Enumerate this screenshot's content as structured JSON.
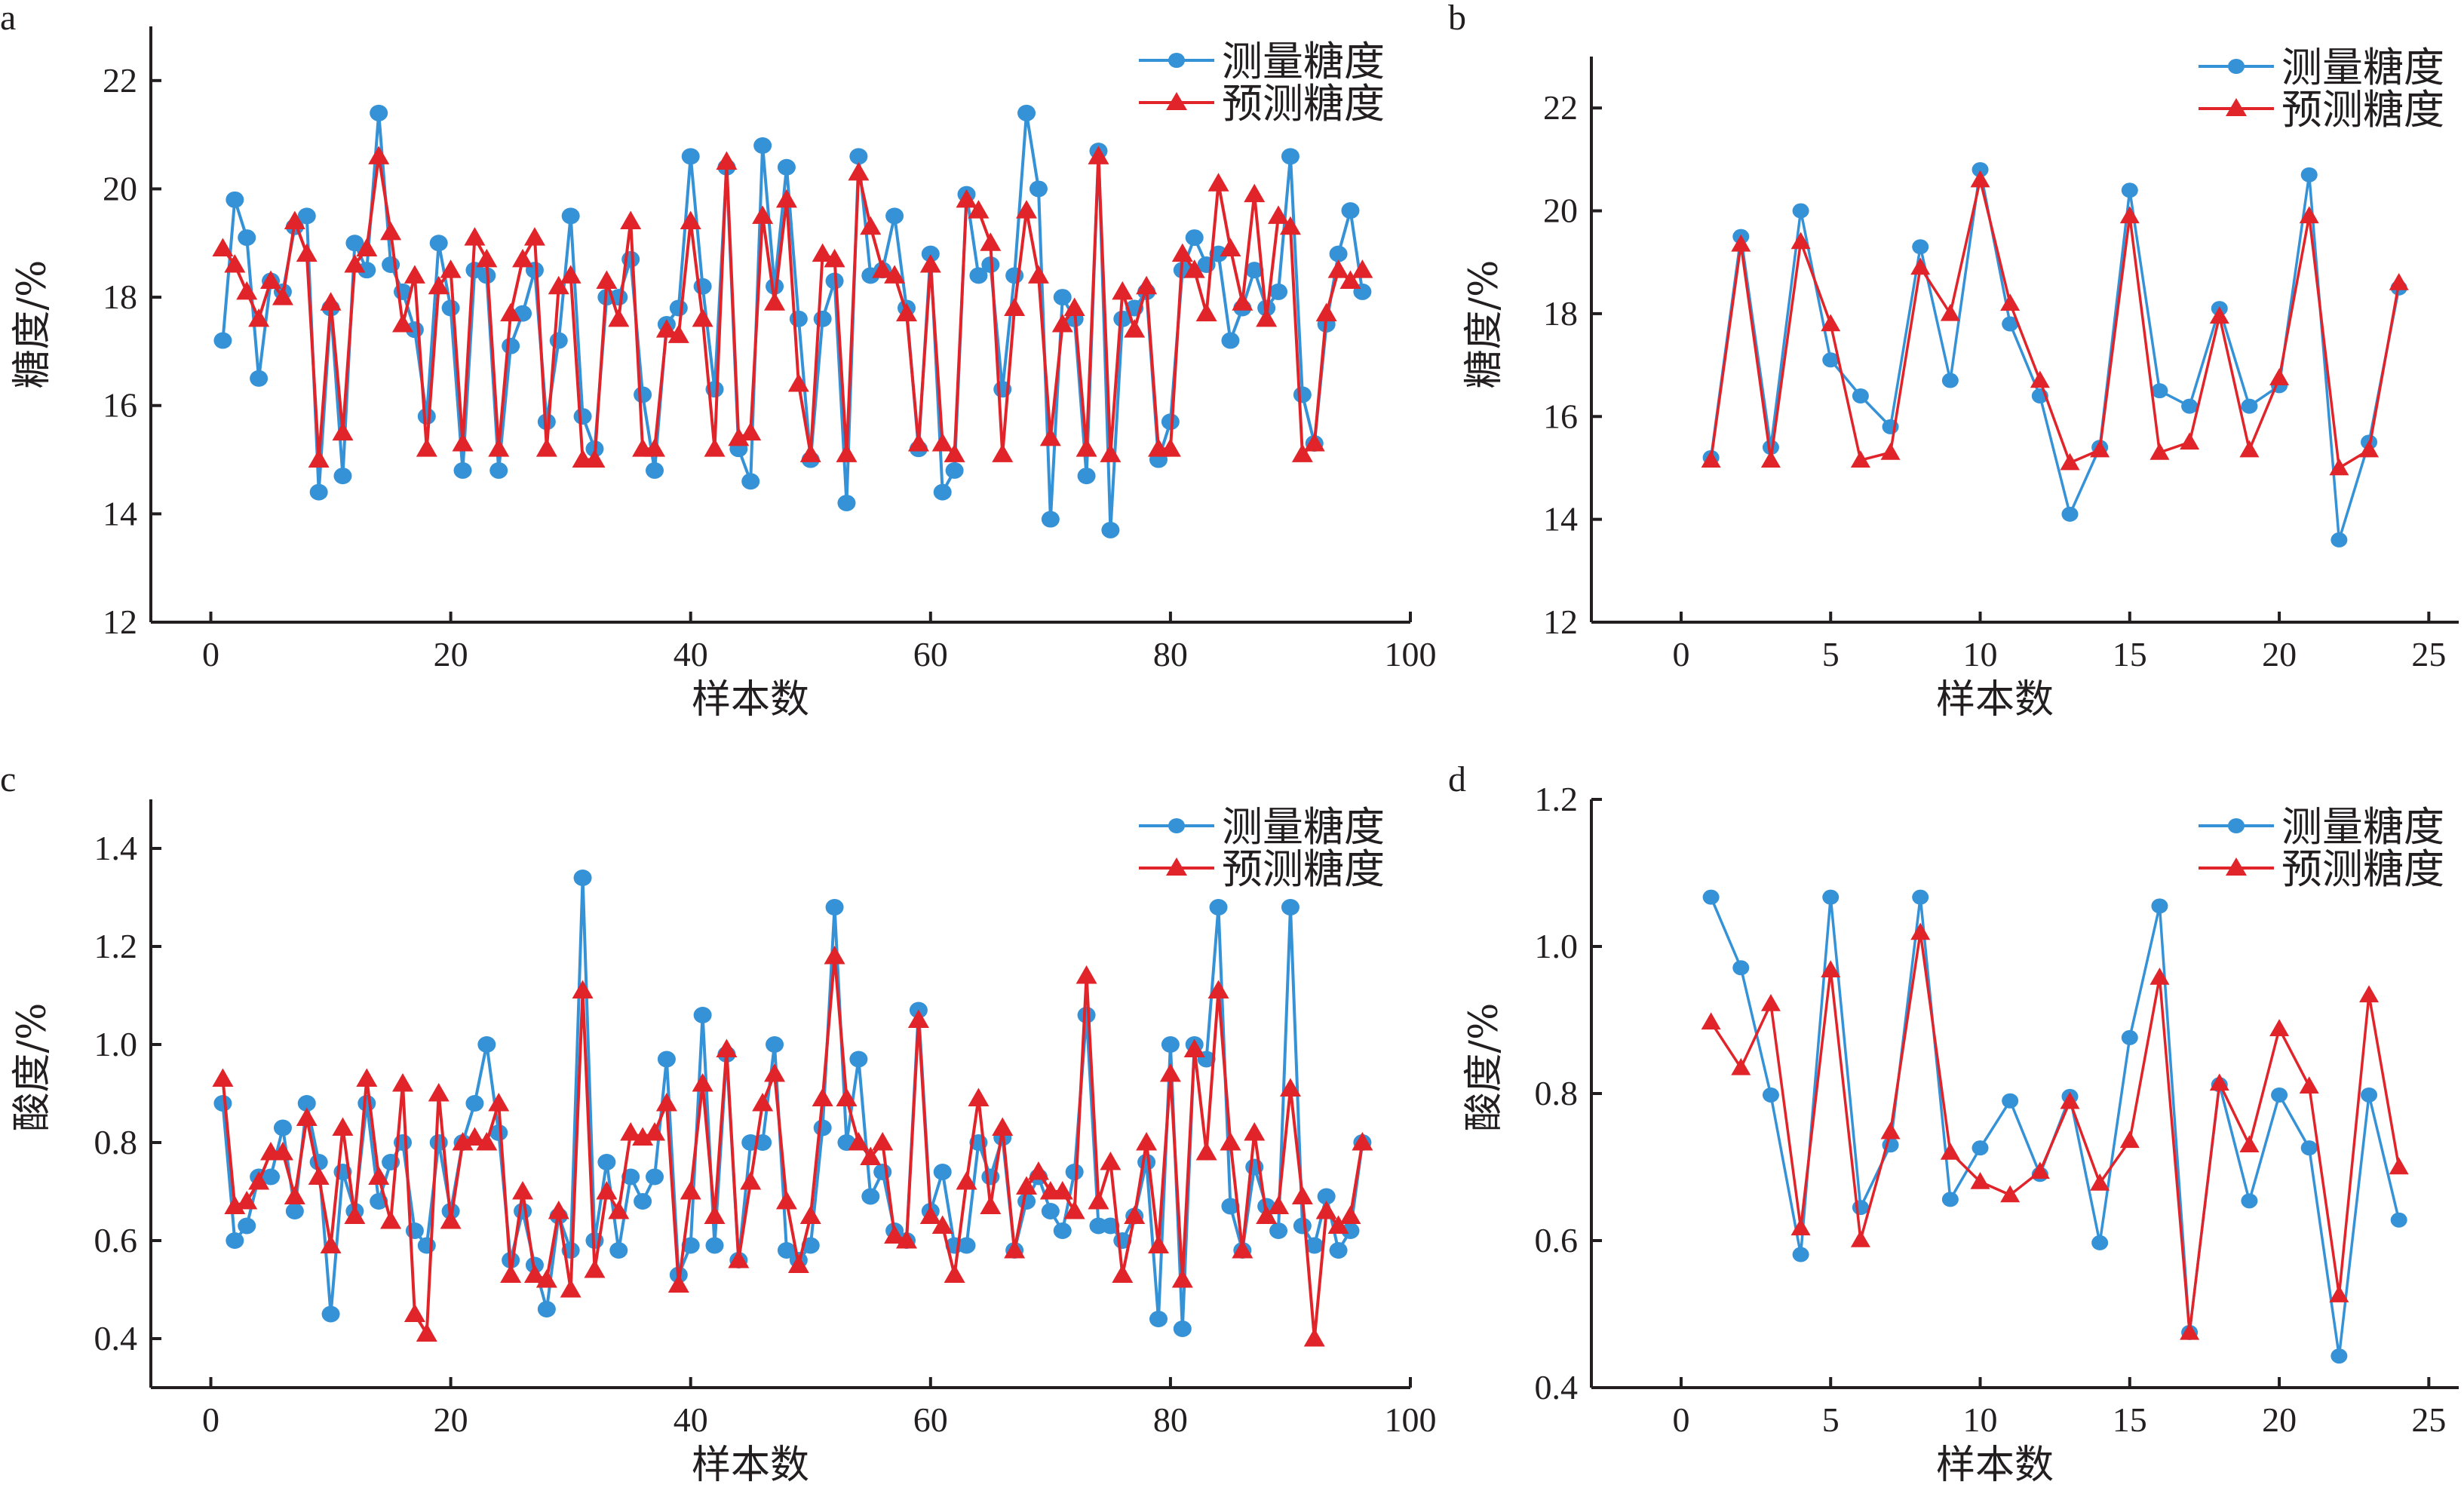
{
  "colors": {
    "measured": "#3592d6",
    "predicted": "#e0242a",
    "axis": "#231f20"
  },
  "chart_data": [
    {
      "id": "a",
      "panel_label": "a",
      "type": "line",
      "title": "",
      "xlabel": "样本数",
      "ylabel": "糖度/%",
      "xlim": [
        -5,
        100
      ],
      "ylim": [
        12,
        23
      ],
      "xticks": [
        0,
        20,
        40,
        60,
        80,
        100
      ],
      "yticks": [
        12,
        14,
        16,
        18,
        20,
        22
      ],
      "ytick_labels": [
        "12",
        "14",
        "16",
        "18",
        "20",
        "22"
      ],
      "legend": {
        "position": "top-right",
        "entries": [
          "测量糖度",
          "预测糖度"
        ]
      },
      "grid": false,
      "x": [
        1,
        2,
        3,
        4,
        5,
        6,
        7,
        8,
        9,
        10,
        11,
        12,
        13,
        14,
        15,
        16,
        17,
        18,
        19,
        20,
        21,
        22,
        23,
        24,
        25,
        26,
        27,
        28,
        29,
        30,
        31,
        32,
        33,
        34,
        35,
        36,
        37,
        38,
        39,
        40,
        41,
        42,
        43,
        44,
        45,
        46,
        47,
        48,
        49,
        50,
        51,
        52,
        53,
        54,
        55,
        56,
        57,
        58,
        59,
        60,
        61,
        62,
        63,
        64,
        65,
        66,
        67,
        68,
        69,
        70,
        71,
        72,
        73,
        74,
        75,
        76,
        77,
        78,
        79,
        80,
        81,
        82,
        83,
        84,
        85,
        86,
        87,
        88,
        89,
        90,
        91,
        92,
        93,
        94,
        95,
        96
      ],
      "series": [
        {
          "name": "测量糖度",
          "marker": "circle",
          "values": [
            17.2,
            19.8,
            19.1,
            16.5,
            18.3,
            18.1,
            19.3,
            19.5,
            14.4,
            17.8,
            14.7,
            19.0,
            18.5,
            21.4,
            18.6,
            18.1,
            17.4,
            15.8,
            19.0,
            17.8,
            14.8,
            18.5,
            18.4,
            14.8,
            17.1,
            17.7,
            18.5,
            15.7,
            17.2,
            19.5,
            15.8,
            15.2,
            18.0,
            18.0,
            18.7,
            16.2,
            14.8,
            17.5,
            17.8,
            20.6,
            18.2,
            16.3,
            20.4,
            15.2,
            14.6,
            20.8,
            18.2,
            20.4,
            17.6,
            15.0,
            17.6,
            18.3,
            14.2,
            20.6,
            18.4,
            18.5,
            19.5,
            17.8,
            15.2,
            18.8,
            14.4,
            14.8,
            19.9,
            18.4,
            18.6,
            16.3,
            18.4,
            21.4,
            20.0,
            13.9,
            18.0,
            17.6,
            14.7,
            20.7,
            13.7,
            17.6,
            17.8,
            18.1,
            15.0,
            15.7,
            18.5,
            19.1,
            18.6,
            18.8,
            17.2,
            17.8,
            18.5,
            17.8,
            18.1,
            20.6,
            16.2,
            15.3,
            17.5,
            18.8,
            19.6,
            18.1
          ]
        },
        {
          "name": "预测糖度",
          "marker": "triangle",
          "values": [
            18.9,
            18.6,
            18.1,
            17.6,
            18.3,
            18.0,
            19.4,
            18.8,
            15.0,
            17.9,
            15.5,
            18.6,
            18.9,
            20.6,
            19.2,
            17.5,
            18.4,
            15.2,
            18.2,
            18.5,
            15.3,
            19.1,
            18.7,
            15.2,
            17.7,
            18.7,
            19.1,
            15.2,
            18.2,
            18.4,
            15.0,
            15.0,
            18.3,
            17.6,
            19.4,
            15.2,
            15.2,
            17.4,
            17.3,
            19.4,
            17.6,
            15.2,
            20.5,
            15.4,
            15.5,
            19.5,
            17.9,
            19.8,
            16.4,
            15.1,
            18.8,
            18.7,
            15.1,
            20.3,
            19.3,
            18.5,
            18.4,
            17.7,
            15.3,
            18.6,
            15.3,
            15.1,
            19.8,
            19.6,
            19.0,
            15.1,
            17.8,
            19.6,
            18.4,
            15.4,
            17.5,
            17.8,
            15.2,
            20.6,
            15.1,
            18.1,
            17.4,
            18.2,
            15.2,
            15.2,
            18.8,
            18.5,
            17.7,
            20.1,
            18.9,
            17.9,
            19.9,
            17.6,
            19.5,
            19.3,
            15.1,
            15.3,
            17.7,
            18.5,
            18.3,
            18.5
          ]
        }
      ]
    },
    {
      "id": "b",
      "panel_label": "b",
      "type": "line",
      "title": "",
      "xlabel": "样本数",
      "ylabel": "糖度/%",
      "xlim": [
        -3,
        26
      ],
      "ylim": [
        12,
        23
      ],
      "xticks": [
        0,
        5,
        10,
        15,
        20,
        25
      ],
      "yticks": [
        12,
        14,
        16,
        18,
        20,
        22
      ],
      "ytick_labels": [
        "12",
        "14",
        "16",
        "18",
        "20",
        "22"
      ],
      "legend": {
        "position": "top-right",
        "entries": [
          "测量糖度",
          "预测糖度"
        ]
      },
      "grid": false,
      "x": [
        1,
        2,
        3,
        4,
        5,
        6,
        7,
        8,
        9,
        10,
        11,
        12,
        13,
        14,
        15,
        16,
        17,
        18,
        19,
        20,
        21,
        22,
        23,
        24
      ],
      "series": [
        {
          "name": "测量糖度",
          "marker": "circle",
          "values": [
            15.2,
            19.5,
            15.4,
            20.0,
            17.1,
            16.4,
            15.8,
            19.3,
            16.7,
            20.8,
            17.8,
            16.4,
            14.1,
            15.4,
            20.4,
            16.5,
            16.2,
            18.1,
            16.2,
            16.6,
            20.7,
            13.6,
            15.5,
            18.5
          ]
        },
        {
          "name": "预测糖度",
          "marker": "triangle",
          "values": [
            15.15,
            19.35,
            15.15,
            19.4,
            17.8,
            15.15,
            15.3,
            18.9,
            18.0,
            20.6,
            18.2,
            16.7,
            15.1,
            15.35,
            19.9,
            15.3,
            15.5,
            17.95,
            15.35,
            16.75,
            19.9,
            15.0,
            15.35,
            18.6
          ]
        }
      ]
    },
    {
      "id": "c",
      "panel_label": "c",
      "type": "line",
      "title": "",
      "xlabel": "样本数",
      "ylabel": "酸度/%",
      "xlim": [
        -5,
        100
      ],
      "ylim": [
        0.3,
        1.5
      ],
      "xticks": [
        0,
        20,
        40,
        60,
        80,
        100
      ],
      "yticks": [
        0.4,
        0.6,
        0.8,
        1.0,
        1.2,
        1.4
      ],
      "ytick_labels": [
        "0.4",
        "0.6",
        "0.8",
        "1.0",
        "1.2",
        "1.4"
      ],
      "legend": {
        "position": "top-right",
        "entries": [
          "测量糖度",
          "预测糖度"
        ]
      },
      "grid": false,
      "x": [
        1,
        2,
        3,
        4,
        5,
        6,
        7,
        8,
        9,
        10,
        11,
        12,
        13,
        14,
        15,
        16,
        17,
        18,
        19,
        20,
        21,
        22,
        23,
        24,
        25,
        26,
        27,
        28,
        29,
        30,
        31,
        32,
        33,
        34,
        35,
        36,
        37,
        38,
        39,
        40,
        41,
        42,
        43,
        44,
        45,
        46,
        47,
        48,
        49,
        50,
        51,
        52,
        53,
        54,
        55,
        56,
        57,
        58,
        59,
        60,
        61,
        62,
        63,
        64,
        65,
        66,
        67,
        68,
        69,
        70,
        71,
        72,
        73,
        74,
        75,
        76,
        77,
        78,
        79,
        80,
        81,
        82,
        83,
        84,
        85,
        86,
        87,
        88,
        89,
        90,
        91,
        92,
        93,
        94,
        95,
        96
      ],
      "series": [
        {
          "name": "测量糖度",
          "marker": "circle",
          "values": [
            0.88,
            0.6,
            0.63,
            0.73,
            0.73,
            0.83,
            0.66,
            0.88,
            0.76,
            0.45,
            0.74,
            0.66,
            0.88,
            0.68,
            0.76,
            0.8,
            0.62,
            0.59,
            0.8,
            0.66,
            0.8,
            0.88,
            1.0,
            0.82,
            0.56,
            0.66,
            0.55,
            0.46,
            0.65,
            0.58,
            1.34,
            0.6,
            0.76,
            0.58,
            0.73,
            0.68,
            0.73,
            0.97,
            0.53,
            0.59,
            1.06,
            0.59,
            0.98,
            0.56,
            0.8,
            0.8,
            1.0,
            0.58,
            0.56,
            0.59,
            0.83,
            1.28,
            0.8,
            0.97,
            0.69,
            0.74,
            0.62,
            0.6,
            1.07,
            0.66,
            0.74,
            0.59,
            0.59,
            0.8,
            0.73,
            0.81,
            0.58,
            0.68,
            0.73,
            0.66,
            0.62,
            0.74,
            1.06,
            0.63,
            0.63,
            0.6,
            0.65,
            0.76,
            0.44,
            1.0,
            0.42,
            1.0,
            0.97,
            1.28,
            0.67,
            0.58,
            0.75,
            0.67,
            0.62,
            1.28,
            0.63,
            0.59,
            0.69,
            0.58,
            0.62,
            0.8
          ]
        },
        {
          "name": "预测糖度",
          "marker": "triangle",
          "values": [
            0.93,
            0.67,
            0.68,
            0.72,
            0.78,
            0.78,
            0.69,
            0.85,
            0.73,
            0.59,
            0.83,
            0.65,
            0.93,
            0.73,
            0.64,
            0.92,
            0.45,
            0.41,
            0.9,
            0.64,
            0.8,
            0.81,
            0.8,
            0.88,
            0.53,
            0.7,
            0.53,
            0.52,
            0.66,
            0.5,
            1.11,
            0.54,
            0.7,
            0.66,
            0.82,
            0.81,
            0.82,
            0.88,
            0.51,
            0.7,
            0.92,
            0.65,
            0.99,
            0.56,
            0.72,
            0.88,
            0.94,
            0.68,
            0.55,
            0.65,
            0.89,
            1.18,
            0.89,
            0.8,
            0.77,
            0.8,
            0.61,
            0.6,
            1.05,
            0.65,
            0.63,
            0.53,
            0.72,
            0.89,
            0.67,
            0.83,
            0.58,
            0.71,
            0.74,
            0.7,
            0.7,
            0.66,
            1.14,
            0.68,
            0.76,
            0.53,
            0.65,
            0.8,
            0.59,
            0.94,
            0.52,
            0.99,
            0.78,
            1.11,
            0.8,
            0.58,
            0.82,
            0.65,
            0.67,
            0.91,
            0.69,
            0.4,
            0.66,
            0.63,
            0.65,
            0.8
          ]
        }
      ]
    },
    {
      "id": "d",
      "panel_label": "d",
      "type": "line",
      "title": "",
      "xlabel": "样本数",
      "ylabel": "酸度/%",
      "xlim": [
        -3,
        26
      ],
      "ylim": [
        0.4,
        1.2
      ],
      "xticks": [
        0,
        5,
        10,
        15,
        20,
        25
      ],
      "yticks": [
        0.4,
        0.6,
        0.8,
        1.0,
        1.2
      ],
      "ytick_labels": [
        "0.4",
        "0.6",
        "0.8",
        "1.0",
        "1.2"
      ],
      "legend": {
        "position": "top-right",
        "entries": [
          "测量糖度",
          "预测糖度"
        ]
      },
      "grid": false,
      "x": [
        1,
        2,
        3,
        4,
        5,
        6,
        7,
        8,
        9,
        10,
        11,
        12,
        13,
        14,
        15,
        16,
        17,
        18,
        19,
        20,
        21,
        22,
        23,
        24
      ],
      "series": [
        {
          "name": "测量糖度",
          "marker": "circle",
          "values": [
            1.067,
            0.971,
            0.798,
            0.581,
            1.067,
            0.645,
            0.73,
            1.067,
            0.656,
            0.726,
            0.79,
            0.69,
            0.796,
            0.597,
            0.876,
            1.055,
            0.475,
            0.812,
            0.654,
            0.798,
            0.726,
            0.443,
            0.798,
            0.628
          ]
        },
        {
          "name": "预测糖度",
          "marker": "triangle",
          "values": [
            0.897,
            0.835,
            0.922,
            0.617,
            0.968,
            0.601,
            0.748,
            1.019,
            0.72,
            0.68,
            0.662,
            0.694,
            0.789,
            0.678,
            0.736,
            0.958,
            0.475,
            0.814,
            0.73,
            0.888,
            0.81,
            0.526,
            0.934,
            0.7
          ]
        }
      ]
    }
  ]
}
